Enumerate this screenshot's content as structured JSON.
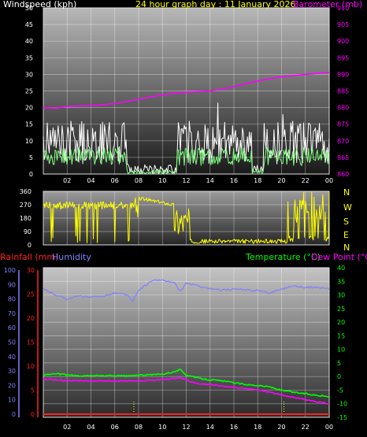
{
  "header": {
    "left_title": "Windspeed (kph)",
    "center_title": "24 hour graph day : 11 January 2026",
    "right_title": "Barometer (mb)"
  },
  "bottom_header": {
    "rain_label": "Rainfall (mm)",
    "humidity_label": "Humidity",
    "temp_label": "Temperature (°C)",
    "dew_label": "Dew Point (°C)"
  },
  "compass_labels": [
    "N",
    "W",
    "S",
    "E",
    "N"
  ],
  "colors": {
    "wind_axis": "#ffffff",
    "baro": "#ff00ff",
    "title": "#ffff00",
    "wind_dir": "#ffff00",
    "rain": "#ff2020",
    "humidity": "#8080ff",
    "temperature": "#00ff00",
    "dewpoint": "#ff00ff",
    "wind_avg": "#80ff80",
    "wind_gust": "#ffffff"
  },
  "chart_data": [
    {
      "type": "line",
      "title": "24 hour graph day : 11 January 2026",
      "x_ticks": [
        "02",
        "04",
        "06",
        "08",
        "10",
        "12",
        "14",
        "16",
        "18",
        "20",
        "22",
        "00"
      ],
      "y_left_label": "Windspeed (kph)",
      "y_left_ticks": [
        0,
        5,
        10,
        15,
        20,
        25,
        30,
        35,
        40,
        45,
        50
      ],
      "y_left_range": [
        0,
        50
      ],
      "y_right_label": "Barometer (mb)",
      "y_right_ticks": [
        860,
        865,
        870,
        875,
        880,
        885,
        890,
        895,
        900,
        905,
        910
      ],
      "y_right_range": [
        860,
        910
      ],
      "series": [
        {
          "name": "Barometer (mb)",
          "axis": "right",
          "x_hours": [
            0,
            1,
            2,
            3,
            4,
            5,
            6,
            7,
            8,
            9,
            10,
            11,
            12,
            13,
            14,
            15,
            16,
            17,
            18,
            19,
            20,
            21,
            22,
            23,
            24
          ],
          "values": [
            880,
            879.8,
            880.3,
            880.5,
            880.6,
            880.8,
            881.2,
            881.8,
            882.5,
            883.2,
            883.8,
            884.3,
            884.6,
            884.8,
            885.0,
            885.5,
            886.3,
            887.2,
            888.0,
            888.7,
            889.3,
            889.6,
            890.0,
            890.3,
            890.6
          ]
        }
      ]
    },
    {
      "type": "line",
      "x_ticks": [
        "02",
        "04",
        "06",
        "08",
        "10",
        "12",
        "14",
        "16",
        "18",
        "20",
        "22",
        "00"
      ],
      "y_ticks": [
        0,
        90,
        180,
        270,
        360
      ],
      "y_range": [
        0,
        360
      ],
      "right_labels": [
        "N",
        "W",
        "S",
        "E",
        "N"
      ]
    },
    {
      "type": "line",
      "x_ticks": [
        "02",
        "04",
        "06",
        "08",
        "10",
        "12",
        "14",
        "16",
        "18",
        "20",
        "22",
        "00"
      ],
      "y_humidity_label": "Humidity",
      "y_humidity_ticks": [
        0,
        10,
        20,
        30,
        40,
        50,
        60,
        70,
        80,
        90,
        100
      ],
      "y_rain_label": "Rainfall (mm)",
      "y_rain_ticks": [
        0,
        5,
        10,
        15,
        20,
        25,
        30
      ],
      "y_temp_label": "Temperature (°C)",
      "y_temp_ticks": [
        -15,
        -10,
        -5,
        0,
        5,
        10,
        15,
        20,
        25,
        30,
        35,
        40
      ],
      "y_temp_range": [
        -15,
        40
      ],
      "series": [
        {
          "name": "Humidity",
          "axis": "humidity",
          "x_hours": [
            0,
            1,
            2,
            3,
            4,
            5,
            6,
            7,
            7.5,
            8,
            9,
            9.5,
            10,
            11,
            11.5,
            12,
            13,
            14,
            15,
            16,
            17,
            18,
            19,
            20,
            21,
            22,
            23,
            24
          ],
          "values": [
            87,
            83,
            80,
            82,
            81,
            82,
            84,
            83,
            78,
            86,
            92,
            93,
            93,
            91,
            85,
            91,
            89,
            87,
            86,
            87,
            86,
            86,
            84,
            87,
            89,
            88,
            88,
            87
          ]
        },
        {
          "name": "Temperature (°C)",
          "axis": "temp",
          "x_hours": [
            0,
            1,
            2,
            3,
            4,
            5,
            6,
            7,
            8,
            9,
            10,
            11,
            11.5,
            12,
            13,
            14,
            15,
            16,
            17,
            18,
            19,
            20,
            21,
            22,
            23,
            24
          ],
          "values": [
            0.6,
            1,
            0.6,
            0.2,
            0.3,
            0.3,
            0.3,
            0.2,
            0.5,
            0.6,
            0.9,
            1.8,
            2.5,
            0.6,
            -0.6,
            -1.2,
            -1.6,
            -2.3,
            -2.9,
            -3.3,
            -3.8,
            -5.1,
            -5.8,
            -6.3,
            -6.9,
            -7.4
          ]
        },
        {
          "name": "Dew Point (°C)",
          "axis": "temp",
          "x_hours": [
            0,
            1,
            2,
            3,
            4,
            5,
            6,
            7,
            8,
            9,
            10,
            11,
            11.5,
            12,
            13,
            14,
            15,
            16,
            17,
            18,
            19,
            20,
            21,
            22,
            23,
            24
          ],
          "values": [
            -0.9,
            -1.2,
            -1.5,
            -1.5,
            -1.6,
            -1.6,
            -1.7,
            -1.6,
            -1.5,
            -1.4,
            -1.2,
            -0.8,
            -0.4,
            -1.3,
            -2.6,
            -3.0,
            -3.6,
            -4.0,
            -4.5,
            -4.9,
            -5.7,
            -6.8,
            -7.7,
            -8.5,
            -9.3,
            -10
          ]
        },
        {
          "name": "Rainfall (mm)",
          "axis": "rain",
          "x_hours": [
            0,
            24
          ],
          "values": [
            0,
            0
          ]
        }
      ]
    }
  ]
}
